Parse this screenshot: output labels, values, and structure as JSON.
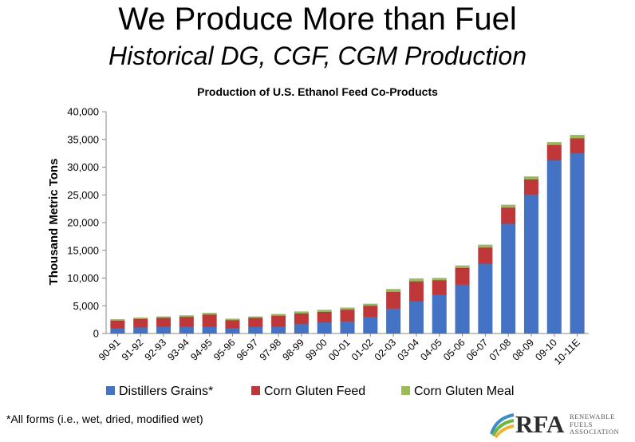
{
  "slide": {
    "title": "We Produce More than Fuel",
    "subtitle": "Historical DG, CGF, CGM Production",
    "footnote": "*All forms (i.e., wet, dried, modified wet)"
  },
  "logo": {
    "letters": "RFA",
    "tagline": [
      "RENEWABLE",
      "FUELS",
      "ASSOCIATION"
    ]
  },
  "colors": {
    "distillers_grains": "#4472C4",
    "corn_gluten_feed": "#C0373A",
    "corn_gluten_meal": "#9BBB59"
  },
  "chart_data": {
    "type": "bar",
    "stacked": true,
    "title": "Production of U.S. Ethanol Feed Co-Products",
    "xlabel": "",
    "ylabel": "Thousand Metric Tons",
    "ylim": [
      0,
      40000
    ],
    "yticks": [
      "0",
      "5,000",
      "10,000",
      "15,000",
      "20,000",
      "25,000",
      "30,000",
      "35,000",
      "40,000"
    ],
    "grid": false,
    "legend": "bottom",
    "categories": [
      "90-91",
      "91-92",
      "92-93",
      "93-94",
      "94-95",
      "95-96",
      "96-97",
      "97-98",
      "98-99",
      "99-00",
      "00-01",
      "01-02",
      "02-03",
      "03-04",
      "04-05",
      "05-06",
      "06-07",
      "07-08",
      "08-09",
      "09-10",
      "10-11E"
    ],
    "series": [
      {
        "name": "Distillers Grains*",
        "values": [
          900,
          1100,
          1300,
          1300,
          1300,
          1000,
          1200,
          1300,
          1700,
          2000,
          2200,
          3000,
          4500,
          5800,
          7000,
          8800,
          12600,
          19800,
          25000,
          31300,
          32500
        ]
      },
      {
        "name": "Corn Gluten Feed",
        "values": [
          1400,
          1500,
          1500,
          1700,
          2100,
          1400,
          1600,
          1900,
          1900,
          1900,
          2100,
          2000,
          3000,
          3600,
          2600,
          3000,
          2900,
          2900,
          2800,
          2700,
          2700
        ]
      },
      {
        "name": "Corn Gluten Meal",
        "values": [
          250,
          250,
          250,
          250,
          300,
          250,
          250,
          300,
          350,
          350,
          350,
          350,
          500,
          500,
          400,
          450,
          500,
          500,
          500,
          500,
          600
        ]
      }
    ]
  }
}
